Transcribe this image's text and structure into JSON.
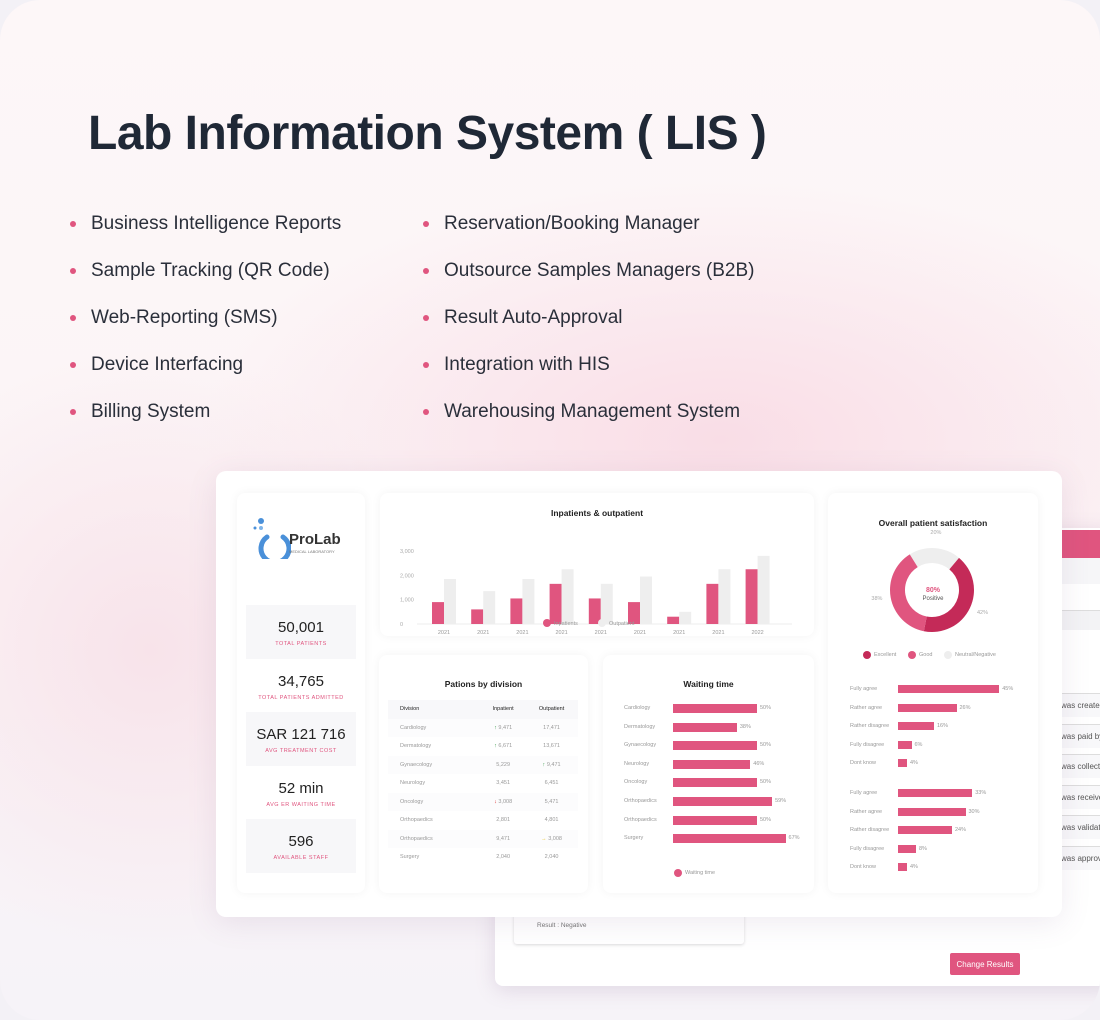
{
  "title": "Lab Information System ( LIS )",
  "features_left": [
    "Business Intelligence Reports",
    "Sample Tracking (QR Code)",
    "Web-Reporting (SMS)",
    "Device Interfacing",
    "Billing System"
  ],
  "features_right": [
    "Reservation/Booking Manager",
    "Outsource Samples Managers (B2B)",
    "Result Auto-Approval",
    "Integration with HIS",
    "Warehousing Management System"
  ],
  "colors": {
    "accent": "#e0557f",
    "dark_accent": "#c42a58",
    "neutral": "#eeeeee"
  },
  "logo": {
    "name": "ProLab",
    "tagline": "MEDICAL LABORATORY"
  },
  "stats": [
    {
      "value": "50,001",
      "label": "TOTAL PATIENTS"
    },
    {
      "value": "34,765",
      "label": "TOTAL PATIENTS ADMITTED"
    },
    {
      "value": "SAR 121 716",
      "label": "AVG TREATMENT COST"
    },
    {
      "value": "52 min",
      "label": "AVG ER WAITING TIME"
    },
    {
      "value": "596",
      "label": "AVAILABLE STAFF"
    }
  ],
  "chart_data": [
    {
      "type": "bar",
      "title": "Inpatients & outpatient",
      "categories": [
        "2021",
        "2021",
        "2021",
        "2021",
        "2021",
        "2021",
        "2021",
        "2021",
        "2022"
      ],
      "yticks": [
        "0",
        "1,000",
        "2,000",
        "3,000"
      ],
      "ylim": [
        0,
        3000
      ],
      "legend": "bottom",
      "series": [
        {
          "name": "Inpatients",
          "color": "#e0557f",
          "values": [
            900,
            600,
            1050,
            1650,
            1050,
            900,
            300,
            1650,
            2250
          ]
        },
        {
          "name": "Outpatient",
          "color": "#eeeeee",
          "values": [
            1850,
            1350,
            1850,
            2250,
            1650,
            1950,
            500,
            2250,
            2800
          ]
        }
      ]
    },
    {
      "type": "table",
      "title": "Pations by division",
      "columns": [
        "Division",
        "Inpatient",
        "Outpatient"
      ],
      "rows": [
        [
          "Cardiology",
          "9,471",
          "17,471"
        ],
        [
          "Dermatology",
          "6,671",
          "13,671"
        ],
        [
          "Gynaecology",
          "5,229",
          "9,471"
        ],
        [
          "Neurology",
          "3,451",
          "6,451"
        ],
        [
          "Oncology",
          "3,008",
          "5,471"
        ],
        [
          "Orthopaedics",
          "2,801",
          "4,801"
        ],
        [
          "Orthopaedics",
          "9,471",
          "3,008"
        ],
        [
          "Surgery",
          "2,040",
          "2,040"
        ]
      ],
      "trends": [
        [
          "up",
          ""
        ],
        [
          "up",
          ""
        ],
        [
          "",
          "up"
        ],
        [
          "",
          ""
        ],
        [
          "down",
          ""
        ],
        [
          "",
          ""
        ],
        [
          "",
          "flat"
        ],
        [
          "",
          ""
        ]
      ]
    },
    {
      "type": "bar",
      "title": "Waiting time",
      "orientation": "horizontal",
      "categories": [
        "Cardiology",
        "Dermatology",
        "Gynaecology",
        "Neurology",
        "Oncology",
        "Orthopaedics",
        "Orthopaedics",
        "Surgery"
      ],
      "series": [
        {
          "name": "Waiting time",
          "values": [
            50,
            38,
            50,
            46,
            50,
            59,
            50,
            67
          ]
        }
      ],
      "unit": "%"
    },
    {
      "type": "pie",
      "title": "Overall patient satisfaction",
      "center_value": "80%",
      "center_label": "Positive",
      "slices": [
        {
          "name": "Excellent",
          "value": 42,
          "color": "#c42a58"
        },
        {
          "name": "Good",
          "value": 38,
          "color": "#e0557f"
        },
        {
          "name": "Neutral/Negative",
          "value": 20,
          "color": "#eeeeee"
        }
      ]
    },
    {
      "type": "bar",
      "orientation": "horizontal",
      "categories": [
        "Fully agree",
        "Rather agree",
        "Rather disagree",
        "Fully disagree",
        "Dont know"
      ],
      "values": [
        45,
        26,
        16,
        6,
        4
      ],
      "unit": "%"
    },
    {
      "type": "bar",
      "orientation": "horizontal",
      "categories": [
        "Fully agree",
        "Rather agree",
        "Rather disagree",
        "Fully disagree",
        "Dont know"
      ],
      "values": [
        33,
        30,
        24,
        8,
        4
      ],
      "unit": "%"
    }
  ],
  "back": {
    "dropdown": "ting",
    "rows": [
      "was created",
      "was paid by",
      "was collecte",
      "was receive",
      "was validat",
      "was approv"
    ],
    "result": "Result : Negative",
    "change_button": "Change Results"
  }
}
